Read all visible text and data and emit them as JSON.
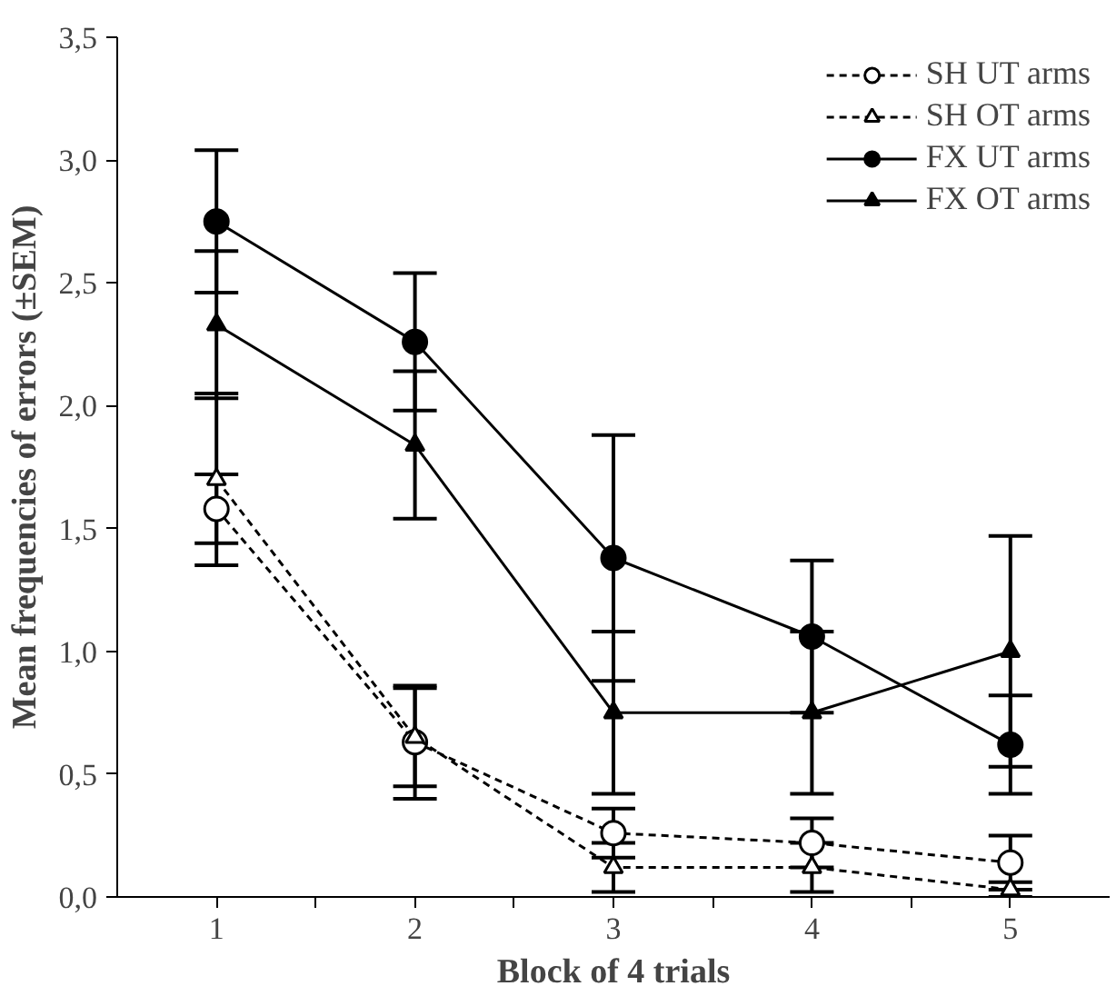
{
  "chart_data": {
    "type": "line",
    "xlabel": "Block of 4 trials",
    "ylabel": "Mean frequencies of errors (±SEM)",
    "x": [
      1,
      2,
      3,
      4,
      5
    ],
    "series": [
      {
        "name": "SH UT arms",
        "color": "#000000",
        "marker": "circle",
        "line_style": "dashed",
        "values": [
          1.58,
          0.63,
          0.26,
          0.22,
          0.14
        ],
        "errors": [
          0.14,
          0.23,
          0.1,
          0.1,
          0.11
        ]
      },
      {
        "name": "SH OT arms",
        "color": "#000000",
        "marker": "triangle",
        "line_style": "dashed",
        "values": [
          1.7,
          0.65,
          0.12,
          0.12,
          0.03
        ],
        "errors": [
          0.35,
          0.2,
          0.1,
          0.1,
          0.03
        ]
      },
      {
        "name": "FX UT arms",
        "color": "#000000",
        "marker": "circle",
        "line_style": "solid",
        "values": [
          2.75,
          2.26,
          1.38,
          1.06,
          0.62
        ],
        "errors": [
          0.29,
          0.28,
          0.5,
          0.31,
          0.2
        ]
      },
      {
        "name": "FX OT arms",
        "color": "#000000",
        "marker": "triangle",
        "line_style": "solid",
        "values": [
          2.33,
          1.84,
          0.75,
          0.75,
          1.0
        ],
        "errors": [
          0.3,
          0.3,
          0.33,
          0.33,
          0.47
        ]
      }
    ],
    "xlim": [
      0.5,
      5.5
    ],
    "xticks": [
      1,
      {
        "value": 1.5,
        "label": null
      },
      2,
      {
        "value": 2.5,
        "label": null
      },
      3,
      {
        "value": 3.5,
        "label": null
      },
      4,
      {
        "value": 4.5,
        "label": null
      },
      5
    ],
    "ylim": [
      0,
      3.5
    ],
    "yticks": [
      {
        "value": 0,
        "label": "0,0"
      },
      {
        "value": 0.5,
        "label": "0,5"
      },
      {
        "value": 1,
        "label": "1,0"
      },
      {
        "value": 1.5,
        "label": "1,5"
      },
      {
        "value": 2,
        "label": "2,0"
      },
      {
        "value": 2.5,
        "label": "2,5"
      },
      {
        "value": 3,
        "label": "3,0"
      },
      {
        "value": 3.5,
        "label": "3,5"
      }
    ],
    "grid": false,
    "legend": "top right"
  }
}
